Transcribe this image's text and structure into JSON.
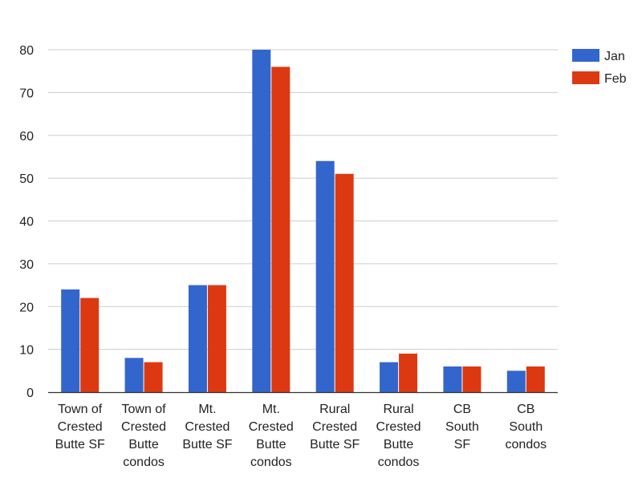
{
  "chart_data": {
    "type": "bar",
    "title": "",
    "xlabel": "",
    "ylabel": "",
    "categories": [
      [
        "Town of",
        "Crested",
        "Butte SF"
      ],
      [
        "Town of",
        "Crested",
        "Butte",
        "condos"
      ],
      [
        "Mt.",
        "Crested",
        "Butte SF"
      ],
      [
        "Mt.",
        "Crested",
        "Butte",
        "condos"
      ],
      [
        "Rural",
        "Crested",
        "Butte SF"
      ],
      [
        "Rural",
        "Crested",
        "Butte",
        "condos"
      ],
      [
        "CB",
        "South",
        "SF"
      ],
      [
        "CB",
        "South",
        "condos"
      ]
    ],
    "series": [
      {
        "name": "Jan",
        "color": "#3366cc",
        "values": [
          24,
          8,
          25,
          80,
          54,
          7,
          6,
          5
        ]
      },
      {
        "name": "Feb",
        "color": "#dc3912",
        "values": [
          22,
          7,
          25,
          76,
          51,
          9,
          6,
          6
        ]
      }
    ],
    "ylim": [
      0,
      80
    ],
    "yticks": [
      0,
      10,
      20,
      30,
      40,
      50,
      60,
      70,
      80
    ],
    "grid": true,
    "legend": "top-right"
  }
}
